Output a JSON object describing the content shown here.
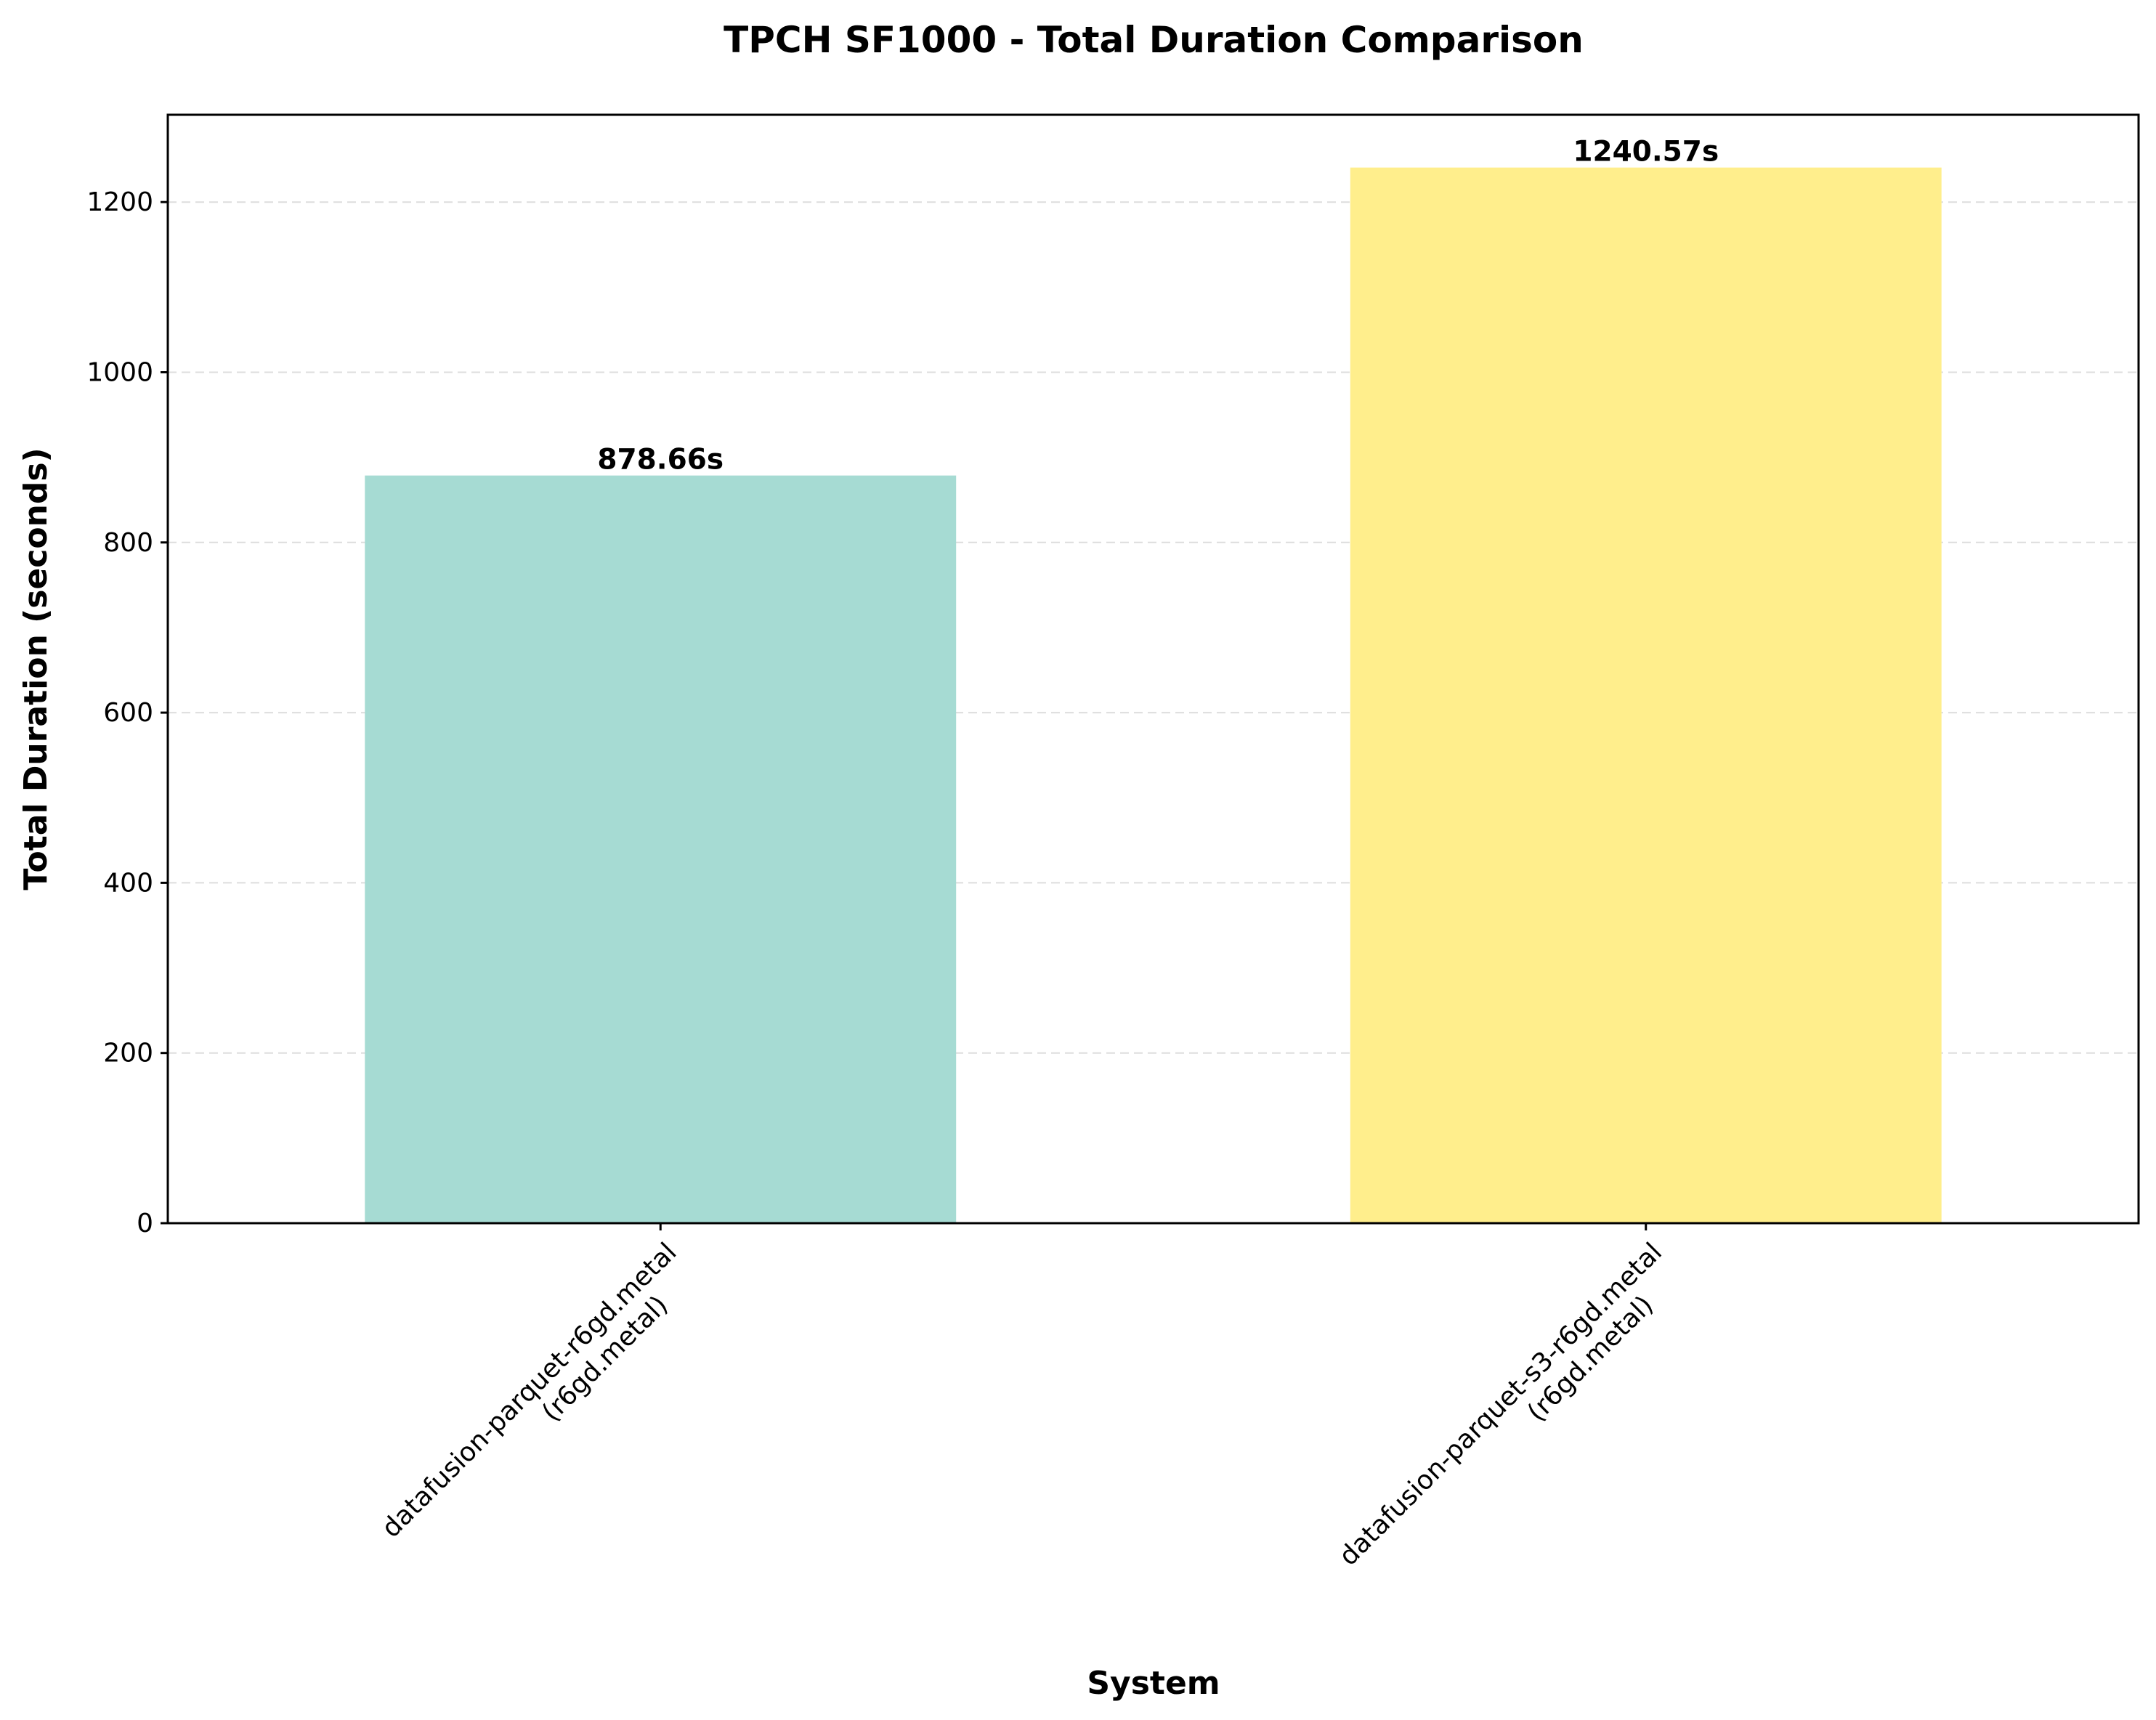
{
  "chart_data": {
    "type": "bar",
    "title": "TPCH SF1000 - Total Duration Comparison",
    "xlabel": "System",
    "ylabel": "Total Duration (seconds)",
    "categories": [
      [
        "datafusion-parquet-r6gd.metal",
        "(r6gd.metal)"
      ],
      [
        "datafusion-parquet-s3-r6gd.metal",
        "(r6gd.metal)"
      ]
    ],
    "values": [
      878.66,
      1240.57
    ],
    "value_labels": [
      "878.66s",
      "1240.57s"
    ],
    "colors": [
      "#a6dbd3",
      "#ffee8c"
    ],
    "ylim": [
      0,
      1302.6
    ],
    "yticks": [
      0,
      200,
      400,
      600,
      800,
      1000,
      1200
    ],
    "grid": true
  }
}
